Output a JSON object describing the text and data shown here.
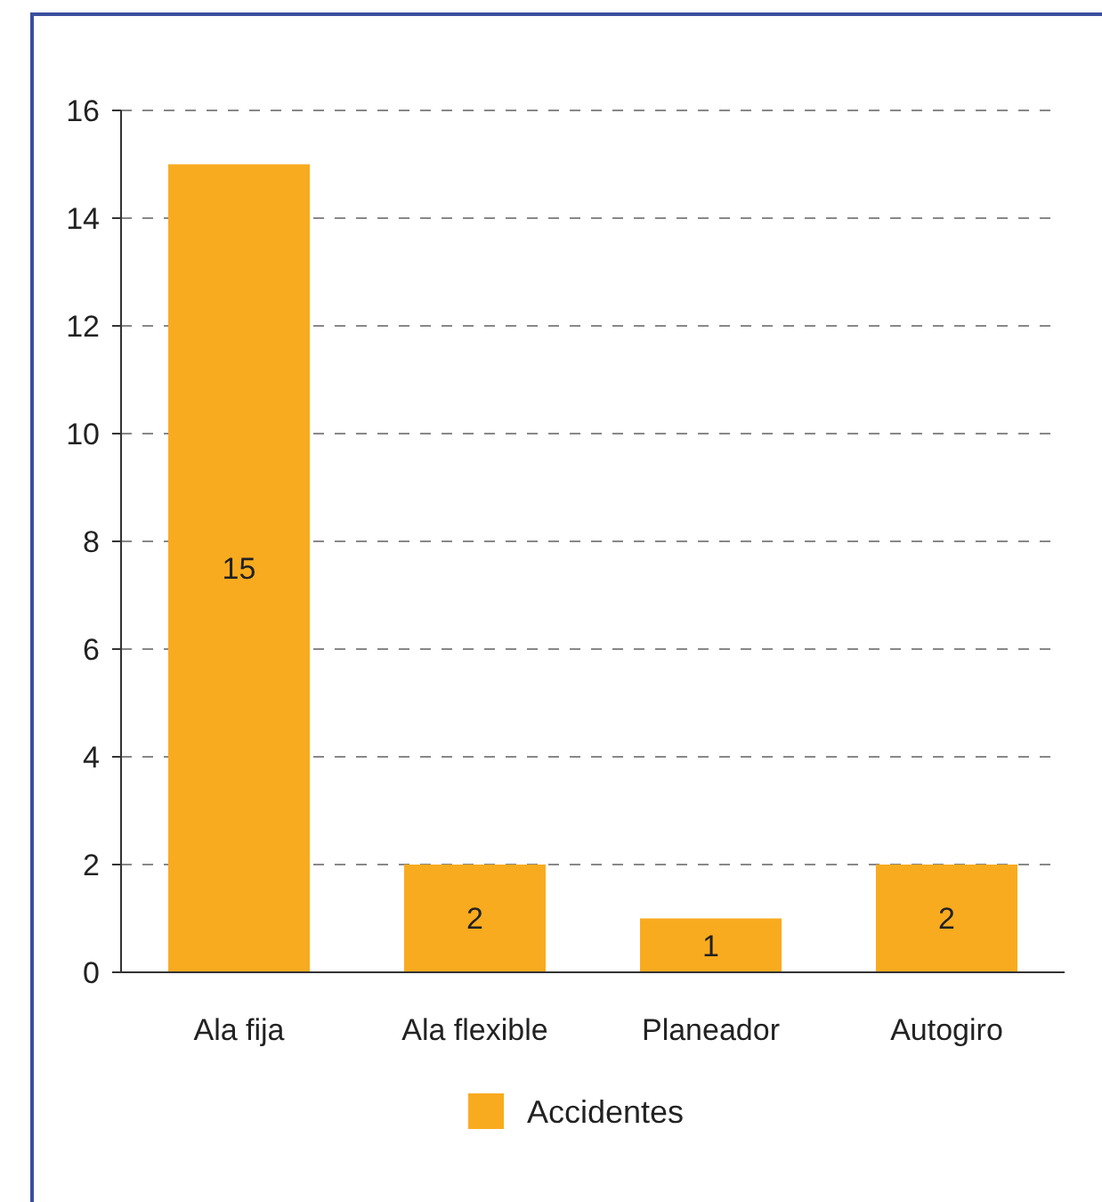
{
  "chart_data": {
    "type": "bar",
    "categories": [
      "Ala fija",
      "Ala flexible",
      "Planeador",
      "Autogiro"
    ],
    "series": [
      {
        "name": "Accidentes",
        "color": "#f9ab1f",
        "values": [
          15,
          2,
          1,
          2
        ]
      }
    ],
    "ylim": [
      0,
      16
    ],
    "yticks": [
      0,
      2,
      4,
      6,
      8,
      10,
      12,
      14,
      16
    ],
    "grid": "y",
    "legend": "bottom",
    "data_labels": true
  }
}
